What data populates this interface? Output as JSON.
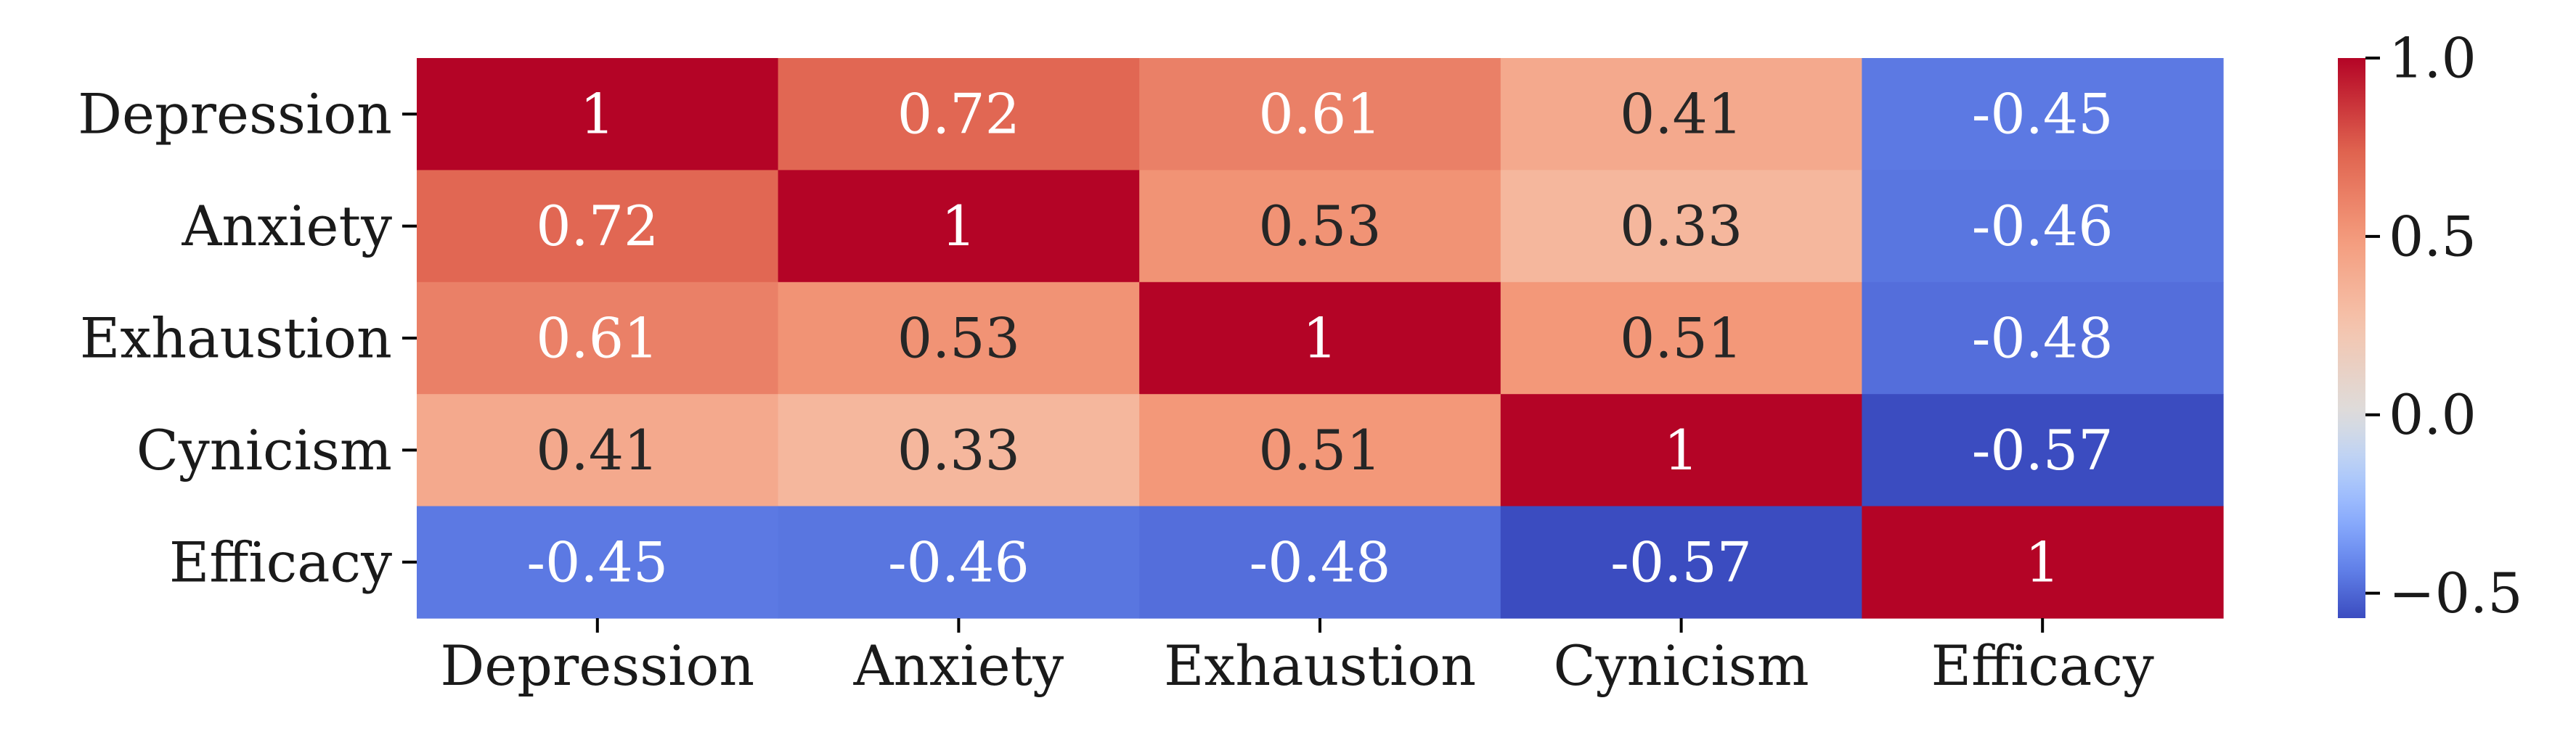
{
  "chart_data": {
    "type": "heatmap",
    "title": "",
    "xlabel": "",
    "ylabel": "",
    "row_labels": [
      "Depression",
      "Anxiety",
      "Exhaustion",
      "Cynicism",
      "Efficacy"
    ],
    "col_labels": [
      "Depression",
      "Anxiety",
      "Exhaustion",
      "Cynicism",
      "Efficacy"
    ],
    "values": [
      [
        1,
        0.72,
        0.61,
        0.41,
        -0.45
      ],
      [
        0.72,
        1,
        0.53,
        0.33,
        -0.46
      ],
      [
        0.61,
        0.53,
        1,
        0.51,
        -0.48
      ],
      [
        0.41,
        0.33,
        0.51,
        1,
        -0.57
      ],
      [
        -0.45,
        -0.46,
        -0.48,
        -0.57,
        1
      ]
    ],
    "annotations": [
      [
        "1",
        "0.72",
        "0.61",
        "0.41",
        "-0.45"
      ],
      [
        "0.72",
        "1",
        "0.53",
        "0.33",
        "-0.46"
      ],
      [
        "0.61",
        "0.53",
        "1",
        "0.51",
        "-0.48"
      ],
      [
        "0.41",
        "0.33",
        "0.51",
        "1",
        "-0.57"
      ],
      [
        "-0.45",
        "-0.46",
        "-0.48",
        "-0.57",
        "1"
      ]
    ],
    "colormap": "coolwarm",
    "colorbar": {
      "vmin": -0.57,
      "vmax": 1.0,
      "center": 0,
      "ticks": [
        1.0,
        0.5,
        0.0,
        -0.5
      ],
      "tick_labels": [
        "1.0",
        "0.5",
        "0.0",
        "−0.5"
      ],
      "position": "right"
    }
  }
}
